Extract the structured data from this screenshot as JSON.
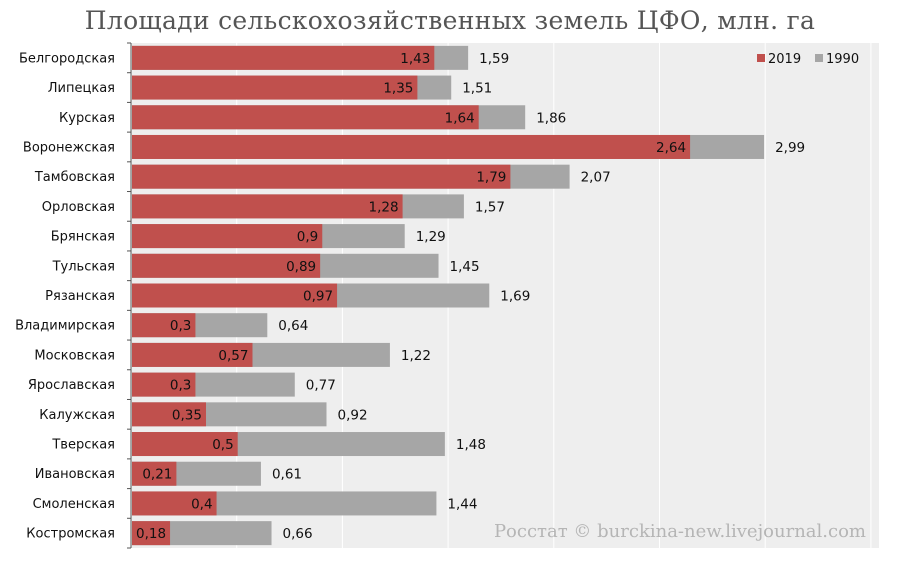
{
  "watermark": "Росстат © burckina-new.livejournal.com",
  "colors": {
    "2019": "#c0504d",
    "1990": "#a6a6a6",
    "plot_bg": "#eeeeee",
    "grid": "#ffffff"
  },
  "chart_data": {
    "type": "bar",
    "orientation": "horizontal",
    "title": "Площади сельскохозяйственных земель ЦФО, млн. га",
    "categories": [
      "Белгородская",
      "Липецкая",
      "Курская",
      "Воронежская",
      "Тамбовская",
      "Орловская",
      "Брянская",
      "Тульская",
      "Рязанская",
      "Владимирская",
      "Московская",
      "Ярославская",
      "Калужская",
      "Тверская",
      "Ивановская",
      "Смоленская",
      "Костромская"
    ],
    "series": [
      {
        "name": "2019",
        "values": [
          1.43,
          1.35,
          1.64,
          2.64,
          1.79,
          1.28,
          0.9,
          0.89,
          0.97,
          0.3,
          0.57,
          0.3,
          0.35,
          0.5,
          0.21,
          0.4,
          0.18
        ]
      },
      {
        "name": "1990",
        "values": [
          1.59,
          1.51,
          1.86,
          2.99,
          2.07,
          1.57,
          1.29,
          1.45,
          1.69,
          0.64,
          1.22,
          0.77,
          0.92,
          1.48,
          0.61,
          1.44,
          0.66
        ]
      }
    ],
    "value_labels": {
      "2019": [
        "1,43",
        "1,35",
        "1,64",
        "2,64",
        "1,79",
        "1,28",
        "0,9",
        "0,89",
        "0,97",
        "0,3",
        "0,57",
        "0,3",
        "0,35",
        "0,5",
        "0,21",
        "0,4",
        "0,18"
      ],
      "1990": [
        "1,59",
        "1,51",
        "1,86",
        "2,99",
        "2,07",
        "1,57",
        "1,29",
        "1,45",
        "1,69",
        "0,64",
        "1,22",
        "0,77",
        "0,92",
        "1,48",
        "0,61",
        "1,44",
        "0,66"
      ]
    },
    "xlim": [
      0,
      3.5
    ],
    "legend": [
      "2019",
      "1990"
    ],
    "legend_position": "top-right",
    "grid": true
  }
}
